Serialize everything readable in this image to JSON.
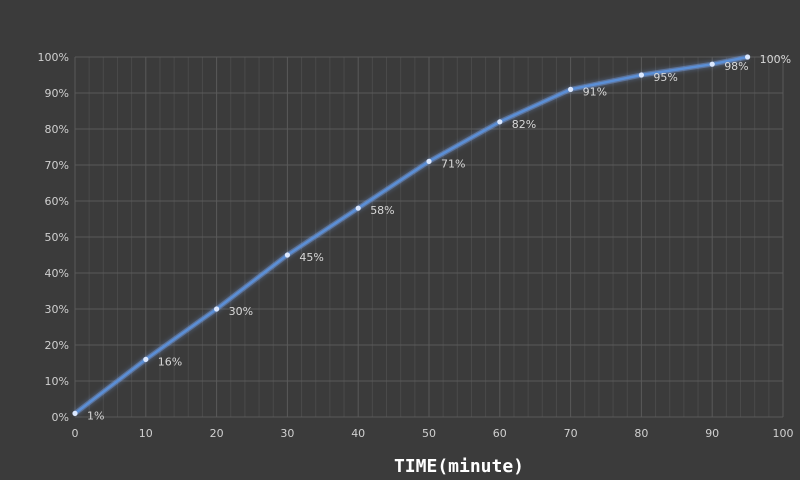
{
  "chart_data": {
    "type": "line",
    "title": "",
    "xlabel": "TIME(minute)",
    "ylabel": "",
    "xlim": [
      0,
      100
    ],
    "ylim": [
      0,
      100
    ],
    "x_ticks": [
      0,
      10,
      20,
      30,
      40,
      50,
      60,
      70,
      80,
      90,
      100
    ],
    "y_ticks": [
      0,
      10,
      20,
      30,
      40,
      50,
      60,
      70,
      80,
      90,
      100
    ],
    "y_tick_suffix": "%",
    "grid": true,
    "series": [
      {
        "x": [
          0,
          10,
          20,
          30,
          40,
          50,
          60,
          70,
          80,
          90,
          95
        ],
        "y": [
          1,
          16,
          30,
          45,
          58,
          71,
          82,
          91,
          95,
          98,
          100
        ],
        "labels": [
          "1%",
          "16%",
          "30%",
          "45%",
          "58%",
          "71%",
          "82%",
          "91%",
          "95%",
          "98%",
          "100%"
        ]
      }
    ],
    "colors": {
      "background": "#3b3b3b",
      "line": "#5b8fd6",
      "glow": "#7fb0ff",
      "marker": "#dbe8ff"
    }
  }
}
